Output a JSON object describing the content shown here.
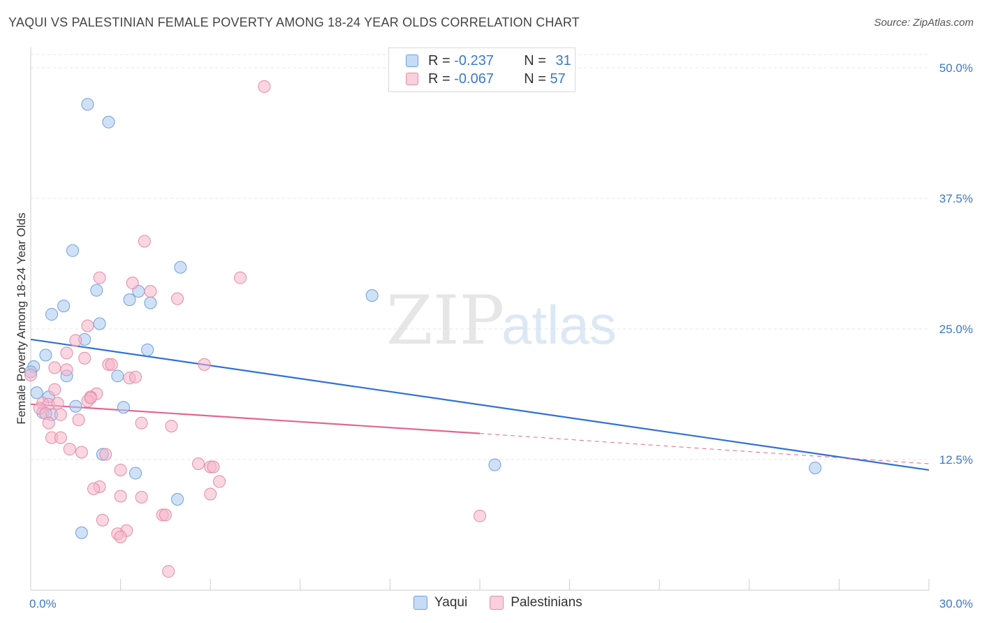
{
  "header": {
    "title": "YAQUI VS PALESTINIAN FEMALE POVERTY AMONG 18-24 YEAR OLDS CORRELATION CHART",
    "source": "Source: ZipAtlas.com"
  },
  "watermark": {
    "zip": "ZIP",
    "atlas": "atlas"
  },
  "legend": {
    "rows": [
      {
        "r_label": "R =",
        "r_value": "-0.237",
        "n_label": "N =",
        "n_value": "31",
        "color": "#a9c8f0"
      },
      {
        "r_label": "R =",
        "r_value": "-0.067",
        "n_label": "N =",
        "n_value": "57",
        "color": "#f5b5c8"
      }
    ]
  },
  "colors": {
    "yaqui_fill": "#a9c8f0",
    "yaqui_stroke": "#6f9fdc",
    "yaqui_line": "#2e72d2",
    "pal_fill": "#f5b5c8",
    "pal_stroke": "#e58aa6",
    "pal_line": "#e0678f",
    "axis_label": "#3d78c8",
    "grid": "#e4e4e4"
  },
  "chart_data": {
    "type": "scatter",
    "title": "YAQUI VS PALESTINIAN FEMALE POVERTY AMONG 18-24 YEAR OLDS CORRELATION CHART",
    "xlabel": "",
    "ylabel": "Female Poverty Among 18-24 Year Olds",
    "xlim": [
      0,
      30
    ],
    "ylim": [
      0,
      52
    ],
    "x_tick_labels": [
      "0.0%",
      "30.0%"
    ],
    "y_ticks": [
      12.5,
      25.0,
      37.5,
      50.0
    ],
    "y_tick_labels": [
      "12.5%",
      "25.0%",
      "37.5%",
      "50.0%"
    ],
    "grid": true,
    "legend_position": "top-center",
    "series": [
      {
        "name": "Yaqui",
        "points": [
          [
            1.9,
            46.5
          ],
          [
            2.6,
            44.8
          ],
          [
            1.4,
            32.5
          ],
          [
            5.0,
            30.9
          ],
          [
            2.2,
            28.7
          ],
          [
            3.6,
            28.6
          ],
          [
            3.3,
            27.8
          ],
          [
            4.0,
            27.5
          ],
          [
            11.4,
            28.2
          ],
          [
            1.1,
            27.2
          ],
          [
            0.7,
            26.4
          ],
          [
            2.3,
            25.5
          ],
          [
            1.8,
            24.0
          ],
          [
            3.9,
            23.0
          ],
          [
            0.5,
            22.5
          ],
          [
            0.1,
            21.4
          ],
          [
            0.0,
            20.9
          ],
          [
            1.2,
            20.5
          ],
          [
            2.9,
            20.5
          ],
          [
            0.2,
            18.9
          ],
          [
            0.6,
            18.5
          ],
          [
            0.4,
            17.0
          ],
          [
            0.7,
            16.8
          ],
          [
            1.5,
            17.6
          ],
          [
            3.1,
            17.5
          ],
          [
            2.4,
            13.0
          ],
          [
            3.5,
            11.2
          ],
          [
            15.5,
            12.0
          ],
          [
            26.2,
            11.7
          ],
          [
            4.9,
            8.7
          ],
          [
            1.7,
            5.5
          ]
        ],
        "trend": {
          "x": [
            0,
            30
          ],
          "y": [
            24.0,
            11.5
          ]
        }
      },
      {
        "name": "Palestinians",
        "points": [
          [
            7.8,
            48.2
          ],
          [
            3.8,
            33.4
          ],
          [
            2.3,
            29.9
          ],
          [
            3.4,
            29.4
          ],
          [
            7.0,
            29.9
          ],
          [
            4.0,
            28.6
          ],
          [
            4.9,
            27.9
          ],
          [
            1.9,
            25.3
          ],
          [
            1.5,
            23.9
          ],
          [
            1.2,
            22.7
          ],
          [
            1.8,
            22.2
          ],
          [
            2.6,
            21.6
          ],
          [
            2.7,
            21.6
          ],
          [
            5.8,
            21.6
          ],
          [
            0.8,
            21.3
          ],
          [
            1.2,
            21.1
          ],
          [
            3.3,
            20.3
          ],
          [
            3.5,
            20.4
          ],
          [
            0.0,
            20.6
          ],
          [
            0.8,
            19.2
          ],
          [
            2.2,
            18.8
          ],
          [
            2.0,
            18.5
          ],
          [
            1.9,
            18.1
          ],
          [
            2.0,
            18.4
          ],
          [
            0.4,
            17.9
          ],
          [
            0.6,
            17.8
          ],
          [
            0.9,
            17.9
          ],
          [
            0.3,
            17.4
          ],
          [
            0.5,
            16.9
          ],
          [
            1.0,
            16.8
          ],
          [
            1.6,
            16.3
          ],
          [
            3.7,
            16.0
          ],
          [
            4.7,
            15.7
          ],
          [
            0.6,
            16.0
          ],
          [
            0.7,
            14.6
          ],
          [
            1.0,
            14.6
          ],
          [
            1.3,
            13.5
          ],
          [
            1.7,
            13.2
          ],
          [
            2.5,
            13.0
          ],
          [
            5.6,
            12.1
          ],
          [
            6.0,
            11.8
          ],
          [
            6.1,
            11.8
          ],
          [
            3.0,
            11.5
          ],
          [
            6.3,
            10.4
          ],
          [
            2.3,
            9.9
          ],
          [
            2.1,
            9.7
          ],
          [
            3.0,
            9.0
          ],
          [
            3.7,
            8.9
          ],
          [
            6.0,
            9.2
          ],
          [
            4.4,
            7.2
          ],
          [
            4.5,
            7.2
          ],
          [
            2.4,
            6.7
          ],
          [
            15.0,
            7.1
          ],
          [
            3.2,
            5.7
          ],
          [
            2.9,
            5.4
          ],
          [
            4.6,
            1.8
          ],
          [
            3.0,
            5.1
          ]
        ],
        "trend": {
          "x": [
            0,
            15
          ],
          "y": [
            17.8,
            15.0
          ],
          "dashed_to": [
            30,
            12.1
          ]
        }
      }
    ]
  },
  "bottom_legend": {
    "items": [
      {
        "label": "Yaqui",
        "color": "#a9c8f0"
      },
      {
        "label": "Palestinians",
        "color": "#f5b5c8"
      }
    ]
  }
}
